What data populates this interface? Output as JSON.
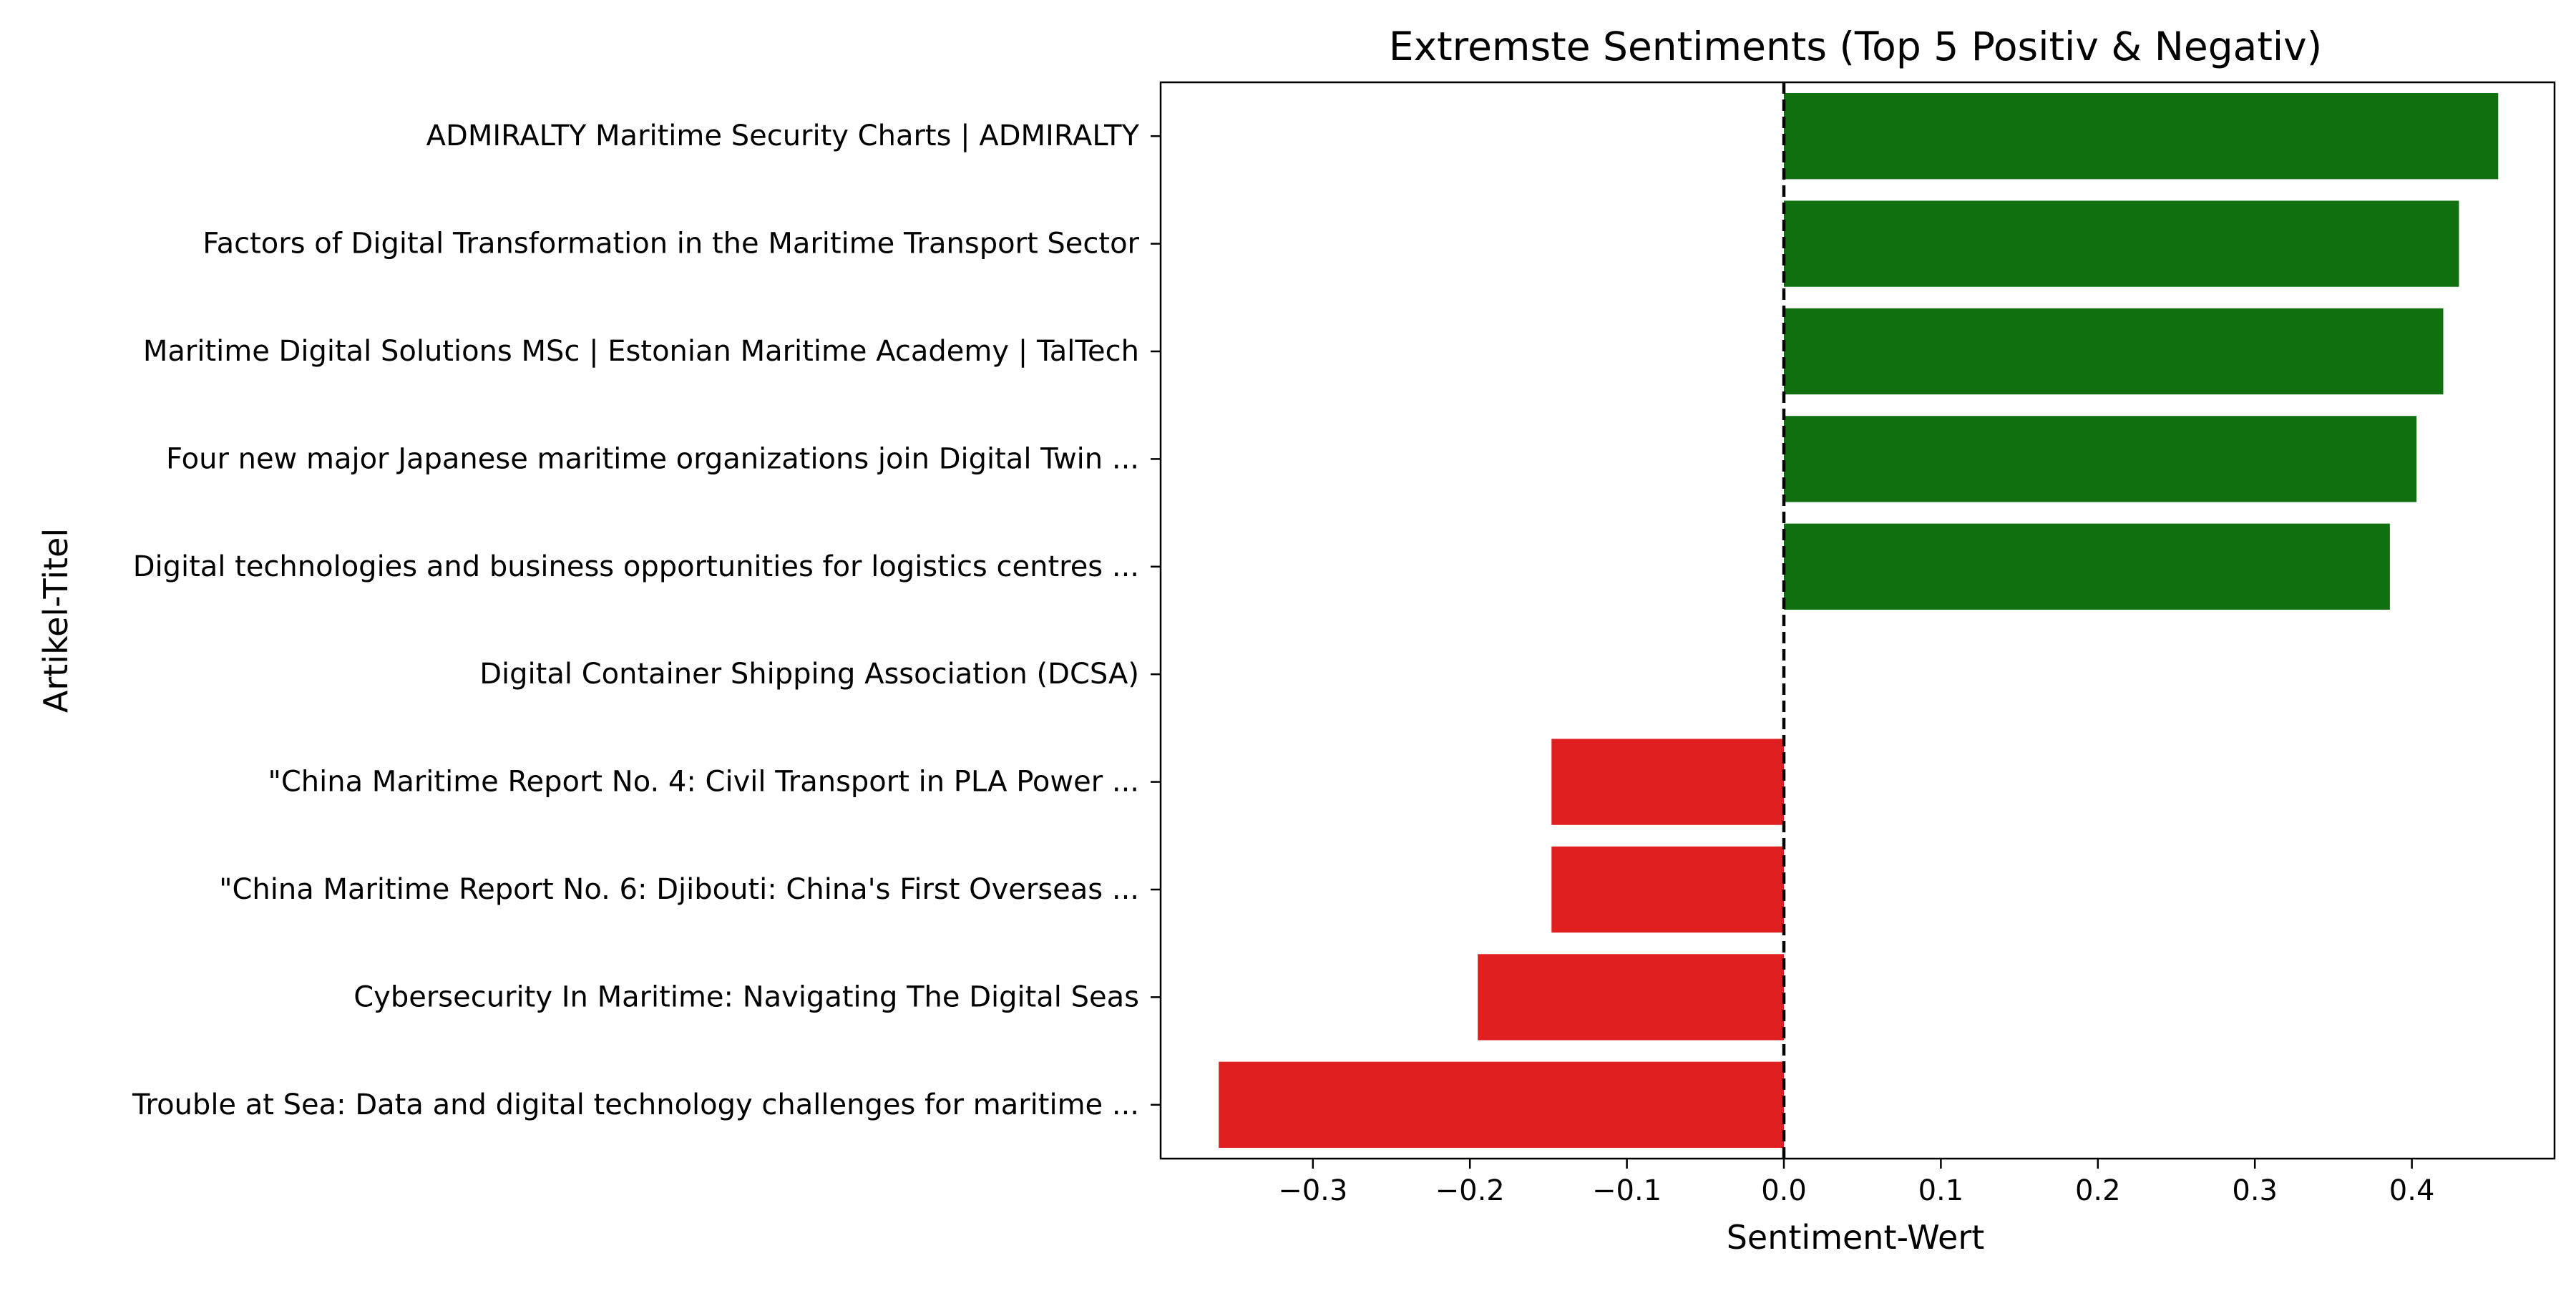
{
  "chart_data": {
    "type": "bar",
    "orientation": "horizontal",
    "title": "Extremste Sentiments (Top 5 Positiv & Negativ)",
    "xlabel": "Sentiment-Wert",
    "ylabel": "Artikel-Titel",
    "xlim": [
      -0.4,
      0.49
    ],
    "xticks": [
      -0.3,
      -0.2,
      -0.1,
      0.0,
      0.1,
      0.2,
      0.3,
      0.4
    ],
    "xtick_labels": [
      "−0.3",
      "−0.2",
      "−0.1",
      "0.0",
      "0.1",
      "0.2",
      "0.3",
      "0.4"
    ],
    "grid": false,
    "reference_line": {
      "x": 0,
      "style": "dashed",
      "color": "#000000"
    },
    "colors": {
      "positive": "#107010",
      "negative": "#e02020"
    },
    "categories": [
      "ADMIRALTY Maritime Security Charts | ADMIRALTY",
      "Factors of Digital Transformation in the Maritime Transport Sector",
      "Maritime Digital Solutions MSc | Estonian Maritime Academy | TalTech",
      "Four new major Japanese maritime organizations join Digital Twin ...",
      "Digital technologies and business opportunities for logistics centres ...",
      "Digital Container Shipping Association (DCSA)",
      "\"China Maritime Report No. 4: Civil Transport in PLA Power ...",
      "\"China Maritime Report No. 6: Djibouti: China's First Overseas ...",
      "Cybersecurity In Maritime: Navigating The Digital Seas",
      "Trouble at Sea: Data and digital technology challenges for maritime ..."
    ],
    "values": [
      0.455,
      0.43,
      0.42,
      0.403,
      0.386,
      0.0,
      -0.148,
      -0.148,
      -0.195,
      -0.36
    ]
  }
}
